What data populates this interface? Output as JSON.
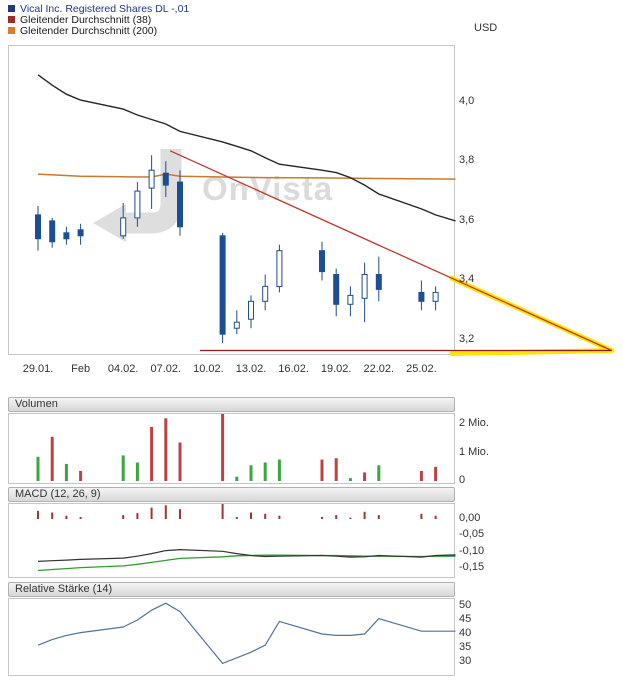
{
  "chart_data": [
    {
      "type": "candlestick",
      "title": "Vical Inc. Registered Shares DL -,01",
      "currency": "USD",
      "watermark": "OnVista",
      "price_color": "#1d4e95",
      "ylim": [
        3.15,
        4.19
      ],
      "y_ticks": [
        {
          "label": "4,0",
          "value": 4.0
        },
        {
          "label": "3,8",
          "value": 3.8
        },
        {
          "label": "3,6",
          "value": 3.6
        },
        {
          "label": "3,4",
          "value": 3.4
        },
        {
          "label": "3,2",
          "value": 3.2
        }
      ],
      "x_ticks": [
        {
          "label": "29.01.",
          "x": 0
        },
        {
          "label": "Feb",
          "x": 3
        },
        {
          "label": "04.02.",
          "x": 6
        },
        {
          "label": "07.02.",
          "x": 9
        },
        {
          "label": "10.02.",
          "x": 12
        },
        {
          "label": "13.02.",
          "x": 15
        },
        {
          "label": "16.02.",
          "x": 18
        },
        {
          "label": "19.02.",
          "x": 21
        },
        {
          "label": "22.02.",
          "x": 24
        },
        {
          "label": "25.02.",
          "x": 27
        }
      ],
      "legend": [
        {
          "label": "Vical Inc. Registered Shares DL -,01",
          "color": "#1f3d7a"
        },
        {
          "label": "Gleitender Durchschnitt (38)",
          "color": "#9e2b25"
        },
        {
          "label": "Gleitender Durchschnitt (200)",
          "color": "#e07b1f"
        }
      ],
      "candles": [
        {
          "date": "29.01.",
          "x": 0,
          "o": 3.62,
          "h": 3.65,
          "l": 3.5,
          "c": 3.54
        },
        {
          "date": "30.01.",
          "x": 1,
          "o": 3.6,
          "h": 3.61,
          "l": 3.51,
          "c": 3.53
        },
        {
          "date": "31.01.",
          "x": 2,
          "o": 3.56,
          "h": 3.58,
          "l": 3.52,
          "c": 3.54
        },
        {
          "date": "01.02.",
          "x": 3,
          "o": 3.57,
          "h": 3.59,
          "l": 3.52,
          "c": 3.55
        },
        {
          "date": "04.02.",
          "x": 6,
          "o": 3.55,
          "h": 3.66,
          "l": 3.54,
          "c": 3.61
        },
        {
          "date": "05.02.",
          "x": 7,
          "o": 3.61,
          "h": 3.73,
          "l": 3.58,
          "c": 3.7
        },
        {
          "date": "06.02.",
          "x": 8,
          "o": 3.71,
          "h": 3.82,
          "l": 3.64,
          "c": 3.77
        },
        {
          "date": "07.02.",
          "x": 9,
          "o": 3.76,
          "h": 3.8,
          "l": 3.68,
          "c": 3.72
        },
        {
          "date": "08.02.",
          "x": 10,
          "o": 3.73,
          "h": 3.77,
          "l": 3.55,
          "c": 3.58
        },
        {
          "date": "11.02.",
          "x": 13,
          "o": 3.55,
          "h": 3.56,
          "l": 3.19,
          "c": 3.22
        },
        {
          "date": "12.02.",
          "x": 14,
          "o": 3.24,
          "h": 3.3,
          "l": 3.22,
          "c": 3.26
        },
        {
          "date": "13.02.",
          "x": 15,
          "o": 3.27,
          "h": 3.35,
          "l": 3.24,
          "c": 3.33
        },
        {
          "date": "14.02.",
          "x": 16,
          "o": 3.33,
          "h": 3.42,
          "l": 3.3,
          "c": 3.38
        },
        {
          "date": "15.02.",
          "x": 17,
          "o": 3.38,
          "h": 3.52,
          "l": 3.36,
          "c": 3.5
        },
        {
          "date": "18.02.",
          "x": 20,
          "o": 3.5,
          "h": 3.53,
          "l": 3.4,
          "c": 3.43
        },
        {
          "date": "19.02.",
          "x": 21,
          "o": 3.42,
          "h": 3.44,
          "l": 3.28,
          "c": 3.32
        },
        {
          "date": "20.02.",
          "x": 22,
          "o": 3.32,
          "h": 3.38,
          "l": 3.28,
          "c": 3.35
        },
        {
          "date": "21.02.",
          "x": 23,
          "o": 3.34,
          "h": 3.46,
          "l": 3.26,
          "c": 3.42
        },
        {
          "date": "22.02.",
          "x": 24,
          "o": 3.42,
          "h": 3.48,
          "l": 3.33,
          "c": 3.37
        },
        {
          "date": "25.02.",
          "x": 27,
          "o": 3.36,
          "h": 3.4,
          "l": 3.3,
          "c": 3.33
        },
        {
          "date": "26.02.",
          "x": 28,
          "o": 3.33,
          "h": 3.38,
          "l": 3.3,
          "c": 3.36
        }
      ],
      "series": [
        {
          "name": "Gleitender Durchschnitt (38)",
          "color": "#262626",
          "points": [
            [
              0,
              4.09
            ],
            [
              1,
              4.055
            ],
            [
              2,
              4.025
            ],
            [
              3,
              4.005
            ],
            [
              6,
              3.975
            ],
            [
              7,
              3.955
            ],
            [
              8,
              3.94
            ],
            [
              9,
              3.925
            ],
            [
              10,
              3.9
            ],
            [
              13,
              3.865
            ],
            [
              14,
              3.85
            ],
            [
              15,
              3.835
            ],
            [
              16,
              3.812
            ],
            [
              17,
              3.79
            ],
            [
              20,
              3.77
            ],
            [
              21,
              3.762
            ],
            [
              22,
              3.745
            ],
            [
              23,
              3.72
            ],
            [
              24,
              3.69
            ],
            [
              27,
              3.64
            ],
            [
              28,
              3.62
            ],
            [
              29.4,
              3.6
            ]
          ]
        },
        {
          "name": "Gleitender Durchschnitt (200)",
          "color": "#c87b2a",
          "points": [
            [
              0,
              3.757
            ],
            [
              3,
              3.75
            ],
            [
              6,
              3.748
            ],
            [
              8,
              3.747
            ],
            [
              9,
              3.757
            ],
            [
              10,
              3.75
            ],
            [
              13,
              3.747
            ],
            [
              16,
              3.745
            ],
            [
              20,
              3.744
            ],
            [
              24,
              3.742
            ],
            [
              29.4,
              3.74
            ]
          ]
        }
      ],
      "annotation": {
        "shape": "descending-triangle",
        "highlight_color": "#ffe400",
        "highlight_from_x": 29.15,
        "resistance": {
          "color": "#c0392b",
          "from": {
            "x": 9.3,
            "value": 3.835
          },
          "to": {
            "x": 40.4,
            "value": 3.165
          }
        },
        "support": {
          "color": "#8e1b1b",
          "from": {
            "x": 11.4,
            "value": 3.165
          },
          "to": {
            "x": 40.4,
            "value": 3.165
          }
        }
      }
    },
    {
      "type": "bar",
      "title": "Volumen",
      "y_ticks": [
        {
          "label": "2 Mio.",
          "value": 2
        },
        {
          "label": "1 Mio.",
          "value": 1
        },
        {
          "label": "0",
          "value": 0
        }
      ],
      "colors": {
        "up": "#3da53d",
        "down": "#bb4343"
      },
      "bars": [
        [
          0,
          0.85,
          "up"
        ],
        [
          1,
          1.55,
          "down"
        ],
        [
          2,
          0.6,
          "up"
        ],
        [
          3,
          0.35,
          "down"
        ],
        [
          6,
          0.9,
          "up"
        ],
        [
          7,
          0.65,
          "up"
        ],
        [
          8,
          1.9,
          "down"
        ],
        [
          9,
          2.2,
          "down"
        ],
        [
          10,
          1.35,
          "down"
        ],
        [
          13,
          2.35,
          "down"
        ],
        [
          14,
          0.15,
          "up"
        ],
        [
          15,
          0.55,
          "up"
        ],
        [
          16,
          0.65,
          "up"
        ],
        [
          17,
          0.75,
          "up"
        ],
        [
          20,
          0.75,
          "down"
        ],
        [
          21,
          0.8,
          "down"
        ],
        [
          22,
          0.1,
          "up"
        ],
        [
          23,
          0.3,
          "down"
        ],
        [
          24,
          0.55,
          "up"
        ],
        [
          27,
          0.35,
          "down"
        ],
        [
          28,
          0.5,
          "down"
        ]
      ]
    },
    {
      "type": "macd",
      "title": "MACD (12, 26, 9)",
      "y_ticks": [
        {
          "label": "0,00",
          "value": 0
        },
        {
          "label": "-0,05",
          "value": -0.05
        },
        {
          "label": "-0,10",
          "value": -0.1
        },
        {
          "label": "-0,15",
          "value": -0.15
        }
      ],
      "histogram_color": "#a83232",
      "histogram": [
        [
          0,
          0.025
        ],
        [
          1,
          0.02
        ],
        [
          2,
          0.01
        ],
        [
          3,
          0.006
        ],
        [
          6,
          0.012
        ],
        [
          7,
          0.018
        ],
        [
          8,
          0.035
        ],
        [
          9,
          0.042
        ],
        [
          10,
          0.03
        ],
        [
          13,
          0.046
        ],
        [
          14,
          0.006
        ],
        [
          15,
          0.02
        ],
        [
          16,
          0.016
        ],
        [
          17,
          0.01
        ],
        [
          20,
          0.006
        ],
        [
          21,
          0.012
        ],
        [
          22,
          0.004
        ],
        [
          23,
          0.022
        ],
        [
          24,
          0.012
        ],
        [
          27,
          0.016
        ],
        [
          28,
          0.01
        ]
      ],
      "macd_line": {
        "color": "#333333",
        "points": [
          [
            0,
            -0.13
          ],
          [
            1,
            -0.128
          ],
          [
            2,
            -0.126
          ],
          [
            3,
            -0.124
          ],
          [
            6,
            -0.12
          ],
          [
            7,
            -0.114
          ],
          [
            8,
            -0.106
          ],
          [
            9,
            -0.097
          ],
          [
            10,
            -0.094
          ],
          [
            13,
            -0.099
          ],
          [
            14,
            -0.106
          ],
          [
            15,
            -0.112
          ],
          [
            16,
            -0.115
          ],
          [
            17,
            -0.114
          ],
          [
            20,
            -0.112
          ],
          [
            21,
            -0.114
          ],
          [
            22,
            -0.117
          ],
          [
            23,
            -0.116
          ],
          [
            24,
            -0.112
          ],
          [
            27,
            -0.117
          ],
          [
            28,
            -0.112
          ],
          [
            29.4,
            -0.11
          ]
        ]
      },
      "signal_line": {
        "color": "#2f9e2f",
        "points": [
          [
            0,
            -0.158
          ],
          [
            1,
            -0.155
          ],
          [
            2,
            -0.152
          ],
          [
            3,
            -0.149
          ],
          [
            6,
            -0.144
          ],
          [
            7,
            -0.139
          ],
          [
            8,
            -0.133
          ],
          [
            9,
            -0.127
          ],
          [
            10,
            -0.121
          ],
          [
            13,
            -0.116
          ],
          [
            14,
            -0.113
          ],
          [
            15,
            -0.112
          ],
          [
            16,
            -0.111
          ],
          [
            17,
            -0.111
          ],
          [
            20,
            -0.112
          ],
          [
            21,
            -0.112
          ],
          [
            22,
            -0.113
          ],
          [
            23,
            -0.114
          ],
          [
            24,
            -0.114
          ],
          [
            27,
            -0.115
          ],
          [
            28,
            -0.114
          ],
          [
            29.4,
            -0.114
          ]
        ]
      }
    },
    {
      "type": "line",
      "title": "Relative Stärke (14)",
      "y_ticks": [
        {
          "label": "50",
          "value": 50
        },
        {
          "label": "45",
          "value": 45
        },
        {
          "label": "40",
          "value": 40
        },
        {
          "label": "35",
          "value": 35
        },
        {
          "label": "30",
          "value": 30
        }
      ],
      "line_color": "#52729f",
      "points": [
        [
          0,
          36
        ],
        [
          1,
          38
        ],
        [
          2,
          39.5
        ],
        [
          3,
          40.5
        ],
        [
          6,
          42.5
        ],
        [
          7,
          45
        ],
        [
          8,
          48.5
        ],
        [
          9,
          51
        ],
        [
          10,
          48
        ],
        [
          13,
          29.5
        ],
        [
          14,
          31.5
        ],
        [
          15,
          33.5
        ],
        [
          16,
          36
        ],
        [
          17,
          44.5
        ],
        [
          20,
          40
        ],
        [
          21,
          39.5
        ],
        [
          22,
          39.5
        ],
        [
          23,
          40
        ],
        [
          24,
          45.5
        ],
        [
          27,
          41
        ],
        [
          28,
          41
        ],
        [
          29.4,
          41
        ]
      ]
    }
  ]
}
